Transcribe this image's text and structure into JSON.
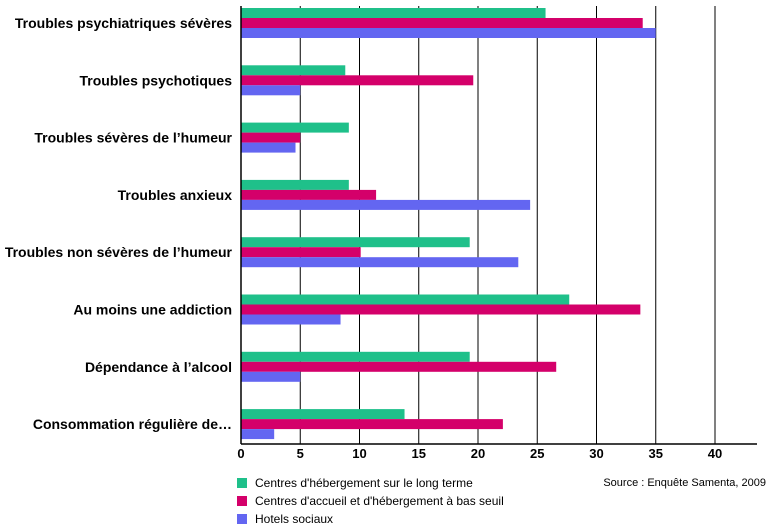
{
  "chart_data": {
    "type": "bar",
    "orientation": "horizontal",
    "categories": [
      "Troubles psychiatriques sévères",
      "Troubles psychotiques",
      "Troubles sévères de l’humeur",
      "Troubles anxieux",
      "Troubles non sévères de l’humeur",
      "Au moins une addiction",
      "Dépendance à l’alcool",
      "Consommation régulière de…"
    ],
    "series": [
      {
        "name": "Centres d'hébergement sur le long terme",
        "color": "#1fc08a",
        "values": [
          25.7,
          8.8,
          9.1,
          9.1,
          19.3,
          27.7,
          19.3,
          13.8
        ]
      },
      {
        "name": "Centres d'accueil et d'hébergement à bas seuil",
        "color": "#d4006a",
        "values": [
          33.9,
          19.6,
          5.0,
          11.4,
          10.1,
          33.7,
          26.6,
          22.1
        ]
      },
      {
        "name": "Hotels sociaux",
        "color": "#6366f1",
        "values": [
          35.0,
          5.0,
          4.6,
          24.4,
          23.4,
          8.4,
          5.0,
          2.8
        ]
      }
    ],
    "xlim": [
      0,
      43
    ],
    "xticks": [
      0,
      5,
      10,
      15,
      20,
      25,
      30,
      35,
      40
    ],
    "grid": true,
    "legend_position": "bottom-left",
    "source": "Source : Enquête Samenta, 2009"
  }
}
